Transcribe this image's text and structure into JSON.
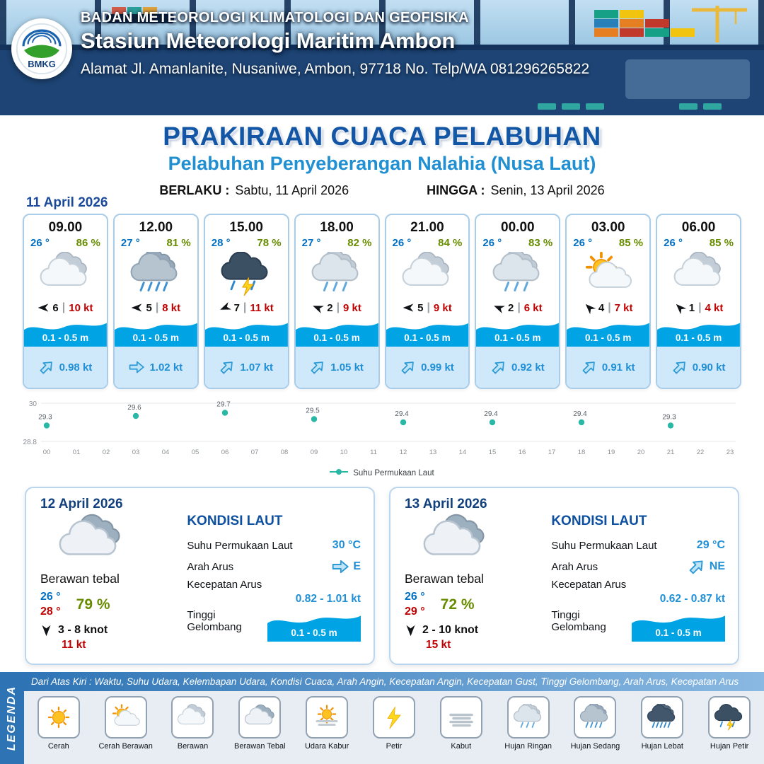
{
  "ui": {
    "separator": "|"
  },
  "header": {
    "logo_text": "BMKG",
    "agency": "BADAN METEOROLOGI KLIMATOLOGI DAN GEOFISIKA",
    "station": "Stasiun Meteorologi Maritim Ambon",
    "address": "Alamat Jl. Amanlanite, Nusaniwe, Ambon, 97718   No. Telp/WA  081296265822"
  },
  "title": {
    "main": "PRAKIRAAN CUACA PELABUHAN",
    "sub": "Pelabuhan Penyeberangan Nalahia (Nusa Laut)",
    "valid_from_label": "BERLAKU :",
    "valid_from": "Sabtu, 11 April 2026",
    "valid_to_label": "HINGGA :",
    "valid_to": "Senin, 13 April 2026"
  },
  "forecast_date": "11 April 2026",
  "forecast_cards": [
    {
      "time": "09.00",
      "temp": "26 °",
      "humidity": "86 %",
      "icon": "berawan",
      "wind_dir": "W",
      "wind_speed": "6",
      "wind_gust": "10 kt",
      "wave": "0.1 - 0.5 m",
      "current_dir": "NE",
      "current_speed": "0.98 kt"
    },
    {
      "time": "12.00",
      "temp": "27 °",
      "humidity": "81 %",
      "icon": "hujan-sedang",
      "wind_dir": "W",
      "wind_speed": "5",
      "wind_gust": "8 kt",
      "wave": "0.1 - 0.5 m",
      "current_dir": "E",
      "current_speed": "1.02 kt"
    },
    {
      "time": "15.00",
      "temp": "28 °",
      "humidity": "78 %",
      "icon": "hujan-petir",
      "wind_dir": "WNW",
      "wind_speed": "7",
      "wind_gust": "11 kt",
      "wave": "0.1 - 0.5 m",
      "current_dir": "NE",
      "current_speed": "1.07 kt"
    },
    {
      "time": "18.00",
      "temp": "27 °",
      "humidity": "82 %",
      "icon": "hujan-ringan",
      "wind_dir": "WSW",
      "wind_speed": "2",
      "wind_gust": "9 kt",
      "wave": "0.1 - 0.5 m",
      "current_dir": "NE",
      "current_speed": "1.05 kt"
    },
    {
      "time": "21.00",
      "temp": "26 °",
      "humidity": "84 %",
      "icon": "berawan",
      "wind_dir": "W",
      "wind_speed": "5",
      "wind_gust": "9 kt",
      "wave": "0.1 - 0.5 m",
      "current_dir": "NE",
      "current_speed": "0.99 kt"
    },
    {
      "time": "00.00",
      "temp": "26 °",
      "humidity": "83 %",
      "icon": "hujan-ringan",
      "wind_dir": "WSW",
      "wind_speed": "2",
      "wind_gust": "6 kt",
      "wave": "0.1 - 0.5 m",
      "current_dir": "NE",
      "current_speed": "0.92 kt"
    },
    {
      "time": "03.00",
      "temp": "26 °",
      "humidity": "85 %",
      "icon": "cerah-berawan",
      "wind_dir": "SW",
      "wind_speed": "4",
      "wind_gust": "7 kt",
      "wave": "0.1 - 0.5 m",
      "current_dir": "NE",
      "current_speed": "0.91 kt"
    },
    {
      "time": "06.00",
      "temp": "26 °",
      "humidity": "85 %",
      "icon": "berawan",
      "wind_dir": "SW",
      "wind_speed": "1",
      "wind_gust": "4 kt",
      "wave": "0.1 - 0.5 m",
      "current_dir": "NE",
      "current_speed": "0.90 kt"
    }
  ],
  "chart_data": {
    "type": "scatter",
    "series_name": "Suhu Permukaan Laut",
    "x_hours": [
      0,
      3,
      6,
      9,
      12,
      15,
      18,
      21
    ],
    "values": [
      29.3,
      29.6,
      29.7,
      29.5,
      29.4,
      29.4,
      29.4,
      29.3
    ],
    "x_ticks": [
      "00",
      "01",
      "02",
      "03",
      "04",
      "05",
      "06",
      "07",
      "08",
      "09",
      "10",
      "11",
      "12",
      "13",
      "14",
      "15",
      "16",
      "17",
      "18",
      "19",
      "20",
      "21",
      "22",
      "23"
    ],
    "y_ticks": [
      "30",
      "28.8"
    ],
    "ylim": [
      28.8,
      30
    ],
    "xlim": [
      0,
      23
    ],
    "title": "",
    "xlabel": "",
    "ylabel": "",
    "point_color": "#2bb7a5",
    "legend_position": "bottom"
  },
  "daily": [
    {
      "date": "12 April 2026",
      "icon": "berawan-tebal",
      "condition": "Berawan tebal",
      "temp_min": "26 °",
      "temp_max": "28 °",
      "humidity": "79 %",
      "wind_dir": "N",
      "wind": "3  - 8 knot",
      "gust": "11 kt",
      "sea": {
        "title": "KONDISI LAUT",
        "sst_label": "Suhu Permukaan Laut",
        "sst": "30 °C",
        "current_dir_label": "Arah Arus",
        "current_dir": "E",
        "current_speed_label": "Kecepatan Arus",
        "current_speed": "0.82 - 1.01 kt",
        "wave_label": "Tinggi Gelombang",
        "wave": "0.1 - 0.5 m"
      }
    },
    {
      "date": "13 April 2026",
      "icon": "berawan-tebal",
      "condition": "Berawan tebal",
      "temp_min": "26 °",
      "temp_max": "29 °",
      "humidity": "72 %",
      "wind_dir": "N",
      "wind": "2  - 10 knot",
      "gust": "15 kt",
      "sea": {
        "title": "KONDISI LAUT",
        "sst_label": "Suhu Permukaan Laut",
        "sst": "29 °C",
        "current_dir_label": "Arah Arus",
        "current_dir": "NE",
        "current_speed_label": "Kecepatan Arus",
        "current_speed": "0.62 - 0.87 kt",
        "wave_label": "Tinggi Gelombang",
        "wave": "0.1 - 0.5 m"
      }
    }
  ],
  "legend": {
    "title": "LEGENDA",
    "note": "Dari Atas Kiri : Waktu, Suhu Udara, Kelembapan Udara, Kondisi Cuaca, Arah Angin, Kecepatan Angin, Kecepatan Gust, Tinggi Gelombang, Arah Arus, Kecepatan Arus",
    "items": [
      {
        "label": "Cerah",
        "icon": "cerah"
      },
      {
        "label": "Cerah Berawan",
        "icon": "cerah-berawan"
      },
      {
        "label": "Berawan",
        "icon": "berawan"
      },
      {
        "label": "Berawan Tebal",
        "icon": "berawan-tebal"
      },
      {
        "label": "Udara Kabur",
        "icon": "udara-kabur"
      },
      {
        "label": "Petir",
        "icon": "petir"
      },
      {
        "label": "Kabut",
        "icon": "kabut"
      },
      {
        "label": "Hujan Ringan",
        "icon": "hujan-ringan"
      },
      {
        "label": "Hujan Sedang",
        "icon": "hujan-sedang"
      },
      {
        "label": "Hujan Lebat",
        "icon": "hujan-lebat"
      },
      {
        "label": "Hujan Petir",
        "icon": "hujan-petir"
      }
    ]
  }
}
